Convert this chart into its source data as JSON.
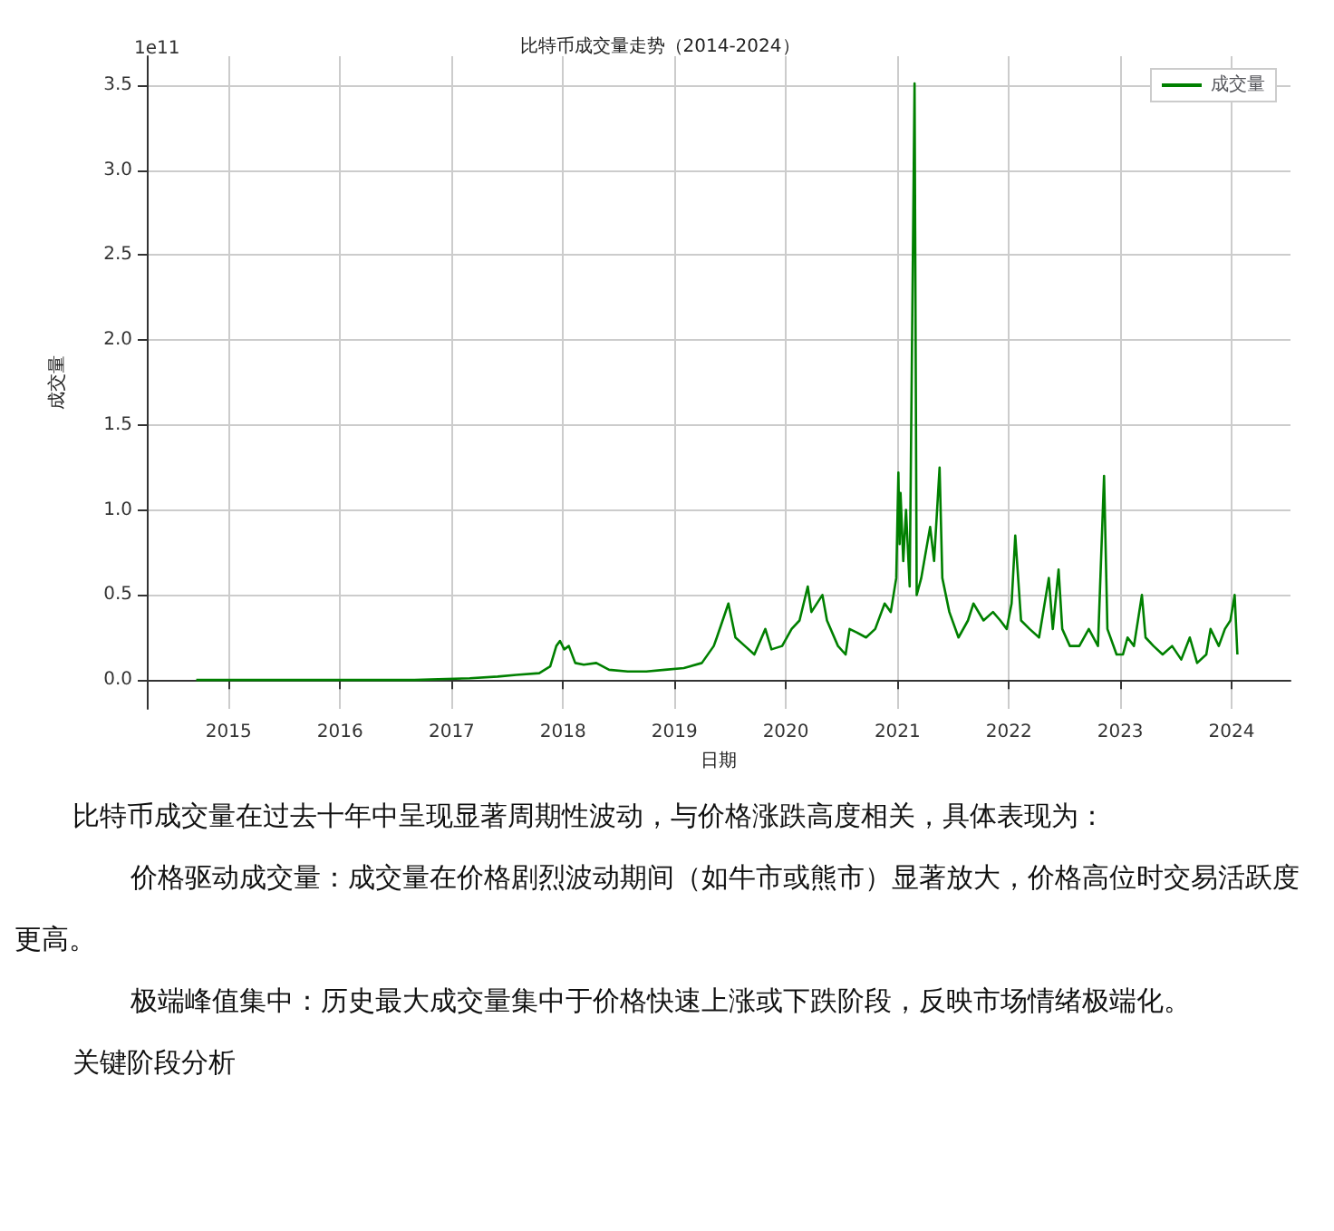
{
  "chart_data": {
    "type": "line",
    "title": "比特币成交量走势（2014-2024）",
    "xlabel": "日期",
    "ylabel": "成交量",
    "x": [
      "2014-09-17",
      "2015-03-01",
      "2015-09-01",
      "2016-03-01",
      "2016-09-01",
      "2017-03-01",
      "2017-06-01",
      "2017-08-01",
      "2017-10-15",
      "2017-11-20",
      "2017-12-10",
      "2017-12-22",
      "2018-01-05",
      "2018-01-20",
      "2018-02-10",
      "2018-03-10",
      "2018-04-20",
      "2018-06-01",
      "2018-08-01",
      "2018-10-01",
      "2018-12-01",
      "2019-02-01",
      "2019-04-01",
      "2019-05-10",
      "2019-05-20",
      "2019-06-27",
      "2019-07-20",
      "2019-08-20",
      "2019-09-20",
      "2019-10-26",
      "2019-11-15",
      "2019-12-20",
      "2020-01-20",
      "2020-02-15",
      "2020-03-13",
      "2020-03-25",
      "2020-04-30",
      "2020-05-15",
      "2020-06-20",
      "2020-07-15",
      "2020-07-28",
      "2020-08-20",
      "2020-09-20",
      "2020-10-20",
      "2020-11-20",
      "2020-12-10",
      "2020-12-28",
      "2021-01-04",
      "2021-01-08",
      "2021-01-11",
      "2021-01-20",
      "2021-01-29",
      "2021-02-10",
      "2021-02-26",
      "2021-03-05",
      "2021-03-20",
      "2021-04-18",
      "2021-05-01",
      "2021-05-19",
      "2021-05-28",
      "2021-06-20",
      "2021-07-20",
      "2021-08-20",
      "2021-09-07",
      "2021-10-10",
      "2021-11-10",
      "2021-12-04",
      "2021-12-25",
      "2022-01-10",
      "2022-01-22",
      "2022-02-10",
      "2022-03-10",
      "2022-04-10",
      "2022-05-12",
      "2022-05-25",
      "2022-06-13",
      "2022-06-25",
      "2022-07-20",
      "2022-08-20",
      "2022-09-20",
      "2022-10-20",
      "2022-11-09",
      "2022-11-20",
      "2022-12-20",
      "2023-01-10",
      "2023-01-25",
      "2023-02-15",
      "2023-03-13",
      "2023-03-25",
      "2023-04-20",
      "2023-05-20",
      "2023-06-20",
      "2023-07-20",
      "2023-08-17",
      "2023-09-10",
      "2023-10-10",
      "2023-10-24",
      "2023-11-20",
      "2023-12-10",
      "2023-12-28",
      "2024-01-11",
      "2024-01-20"
    ],
    "series": [
      {
        "name": "成交量",
        "color": "#008000",
        "values": [
          0,
          0,
          0,
          0,
          0,
          0.01,
          0.02,
          0.03,
          0.04,
          0.08,
          0.2,
          0.23,
          0.18,
          0.2,
          0.1,
          0.09,
          0.1,
          0.06,
          0.05,
          0.05,
          0.06,
          0.07,
          0.1,
          0.2,
          0.25,
          0.45,
          0.25,
          0.2,
          0.15,
          0.3,
          0.18,
          0.2,
          0.3,
          0.35,
          0.55,
          0.4,
          0.5,
          0.35,
          0.2,
          0.15,
          0.3,
          0.28,
          0.25,
          0.3,
          0.45,
          0.4,
          0.6,
          1.22,
          0.8,
          1.1,
          0.7,
          1.0,
          0.55,
          3.51,
          0.5,
          0.6,
          0.9,
          0.7,
          1.25,
          0.6,
          0.4,
          0.25,
          0.35,
          0.45,
          0.35,
          0.4,
          0.35,
          0.3,
          0.45,
          0.85,
          0.35,
          0.3,
          0.25,
          0.6,
          0.3,
          0.65,
          0.3,
          0.2,
          0.2,
          0.3,
          0.2,
          1.2,
          0.3,
          0.15,
          0.15,
          0.25,
          0.2,
          0.5,
          0.25,
          0.2,
          0.15,
          0.2,
          0.12,
          0.25,
          0.1,
          0.15,
          0.3,
          0.2,
          0.3,
          0.35,
          0.5,
          0.15
        ]
      }
    ],
    "xlim": [
      "2014-04-08",
      "2024-07-12"
    ],
    "xticks": [
      {
        "value": "2015-01-01",
        "label": "2015"
      },
      {
        "value": "2016-01-01",
        "label": "2016"
      },
      {
        "value": "2017-01-01",
        "label": "2017"
      },
      {
        "value": "2018-01-01",
        "label": "2018"
      },
      {
        "value": "2019-01-01",
        "label": "2019"
      },
      {
        "value": "2020-01-01",
        "label": "2020"
      },
      {
        "value": "2021-01-01",
        "label": "2021"
      },
      {
        "value": "2022-01-01",
        "label": "2022"
      },
      {
        "value": "2023-01-01",
        "label": "2023"
      },
      {
        "value": "2024-01-01",
        "label": "2024"
      }
    ],
    "ylim": [
      -0.17,
      3.67
    ],
    "yticks": [
      {
        "value": 0,
        "label": "0.0"
      },
      {
        "value": 0.5,
        "label": "0.5"
      },
      {
        "value": 1,
        "label": "1.0"
      },
      {
        "value": 1.5,
        "label": "1.5"
      },
      {
        "value": 2,
        "label": "2.0"
      },
      {
        "value": 2.5,
        "label": "2.5"
      },
      {
        "value": 3,
        "label": "3.0"
      },
      {
        "value": 3.5,
        "label": "3.5"
      }
    ],
    "grid": true,
    "legend": "top right",
    "marker": "none",
    "line_style": "solid",
    "annotations": [
      "1e11",
      "比特币成交量在过去十年中呈现显著周期性波动，与价格涨跌高度相关，具体表现为：",
      "价格驱动成交量：成交量在价格剧烈波动期间（如牛市或熊市）显著放大，价格高位时交易活跃度更高。",
      "极端峰值集中：历史最大成交量集中于价格快速上涨或下跌阶段，反映市场情绪极端化。",
      "关键阶段分析"
    ]
  }
}
